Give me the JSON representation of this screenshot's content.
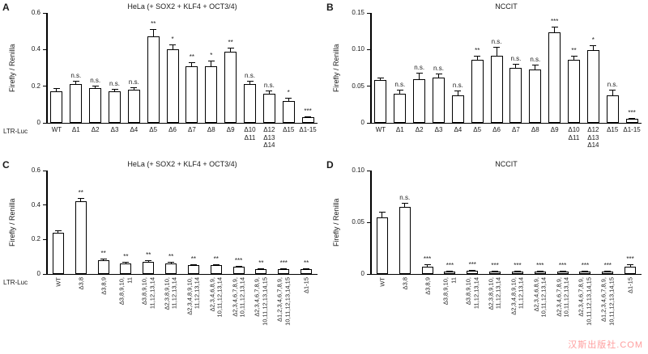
{
  "watermark": "汉斯出版社.COM",
  "chart_data": [
    {
      "panel": "A",
      "type": "bar",
      "title": "HeLa (+ SOX2 + KLF4 + OCT3/4)",
      "ylabel": "Firefly / Renilla",
      "xlabel": "LTR-Luc",
      "ylim": [
        0,
        0.6
      ],
      "yticks": [
        0,
        0.2,
        0.4,
        0.6
      ],
      "ytick_labels": [
        "0",
        "0.2",
        "0.4",
        "0.6"
      ],
      "rotated_labels": false,
      "categories": [
        [
          "WT"
        ],
        [
          "Δ1"
        ],
        [
          "Δ2"
        ],
        [
          "Δ3"
        ],
        [
          "Δ4"
        ],
        [
          "Δ5"
        ],
        [
          "Δ6"
        ],
        [
          "Δ7"
        ],
        [
          "Δ8"
        ],
        [
          "Δ9"
        ],
        [
          "Δ10",
          "Δ11"
        ],
        [
          "Δ12",
          "Δ13",
          "Δ14"
        ],
        [
          "Δ15"
        ],
        [
          "Δ1-15"
        ]
      ],
      "values": [
        0.17,
        0.21,
        0.19,
        0.17,
        0.18,
        0.47,
        0.4,
        0.31,
        0.31,
        0.39,
        0.21,
        0.16,
        0.12,
        0.03
      ],
      "errors": [
        0.02,
        0.02,
        0.015,
        0.015,
        0.015,
        0.04,
        0.03,
        0.02,
        0.03,
        0.02,
        0.02,
        0.015,
        0.015,
        0.005
      ],
      "significance": [
        "",
        "n.s.",
        "n.s.",
        "n.s.",
        "n.s.",
        "**",
        "*",
        "**",
        "*",
        "**",
        "n.s.",
        "n.s.",
        "*",
        "***"
      ]
    },
    {
      "panel": "B",
      "type": "bar",
      "title": "NCCIT",
      "ylabel": "Firefly / Renilla",
      "xlabel": "",
      "ylim": [
        0,
        0.15
      ],
      "yticks": [
        0,
        0.05,
        0.1,
        0.15
      ],
      "ytick_labels": [
        "0",
        "0.05",
        "0.10",
        "0.15"
      ],
      "rotated_labels": false,
      "categories": [
        [
          "WT"
        ],
        [
          "Δ1"
        ],
        [
          "Δ2"
        ],
        [
          "Δ3"
        ],
        [
          "Δ4"
        ],
        [
          "Δ5"
        ],
        [
          "Δ6"
        ],
        [
          "Δ7"
        ],
        [
          "Δ8"
        ],
        [
          "Δ9"
        ],
        [
          "Δ10",
          "Δ11"
        ],
        [
          "Δ12",
          "Δ13",
          "Δ14"
        ],
        [
          "Δ15"
        ],
        [
          "Δ1-15"
        ]
      ],
      "values": [
        0.058,
        0.04,
        0.06,
        0.062,
        0.038,
        0.086,
        0.092,
        0.075,
        0.073,
        0.123,
        0.086,
        0.099,
        0.037,
        0.005
      ],
      "errors": [
        0.004,
        0.005,
        0.008,
        0.005,
        0.006,
        0.006,
        0.012,
        0.006,
        0.006,
        0.008,
        0.005,
        0.007,
        0.008,
        0.002
      ],
      "significance": [
        "",
        "n.s.",
        "n.s.",
        "n.s.",
        "n.s.",
        "**",
        "n.s.",
        "n.s.",
        "n.s.",
        "***",
        "**",
        "*",
        "n.s.",
        "***"
      ]
    },
    {
      "panel": "C",
      "type": "bar",
      "title": "HeLa (+ SOX2 + KLF4 + OCT3/4)",
      "ylabel": "Firefly / Renilla",
      "xlabel": "LTR-Luc",
      "ylim": [
        0,
        0.6
      ],
      "yticks": [
        0,
        0.2,
        0.4,
        0.6
      ],
      "ytick_labels": [
        "0",
        "0.2",
        "0.4",
        "0.6"
      ],
      "rotated_labels": true,
      "categories": [
        [
          "WT"
        ],
        [
          "Δ3,8"
        ],
        [
          "Δ3,8,9"
        ],
        [
          "Δ3,8,9,10,",
          "11"
        ],
        [
          "Δ3,8,9,10,",
          "11,12,13,14"
        ],
        [
          "Δ2,3,8,9,10,",
          "11,12,13,14"
        ],
        [
          "Δ2,3,4,8,9,10,",
          "11,12,13,14"
        ],
        [
          "Δ2,3,4,6,8,9,",
          "10,11,12,13,14"
        ],
        [
          "Δ2,3,4,6,7,8,9,",
          "10,11,12,13,14"
        ],
        [
          "Δ2,3,4,6,7,8,9,",
          "10,11,12,13,14,15"
        ],
        [
          "Δ1,2,3,4,6,7,8,9,",
          "10,11,12,13,14,15"
        ],
        [
          "Δ1-15"
        ]
      ],
      "values": [
        0.24,
        0.42,
        0.08,
        0.06,
        0.07,
        0.06,
        0.05,
        0.05,
        0.04,
        0.03,
        0.03,
        0.03
      ],
      "errors": [
        0.015,
        0.02,
        0.01,
        0.008,
        0.01,
        0.008,
        0.008,
        0.008,
        0.006,
        0.005,
        0.005,
        0.005
      ],
      "significance": [
        "",
        "**",
        "**",
        "**",
        "**",
        "**",
        "**",
        "**",
        "***",
        "**",
        "***",
        "**"
      ]
    },
    {
      "panel": "D",
      "type": "bar",
      "title": "NCCIT",
      "ylabel": "Firefly / Renilla",
      "xlabel": "",
      "ylim": [
        0,
        0.1
      ],
      "yticks": [
        0,
        0.05,
        0.1
      ],
      "ytick_labels": [
        "0",
        "0.05",
        "0.10"
      ],
      "rotated_labels": true,
      "categories": [
        [
          "WT"
        ],
        [
          "Δ3,8"
        ],
        [
          "Δ3,8,9"
        ],
        [
          "Δ3,8,9,10,",
          "11"
        ],
        [
          "Δ3,8,9,10,",
          "11,12,13,14"
        ],
        [
          "Δ2,3,8,9,10,",
          "11,12,13,14"
        ],
        [
          "Δ2,3,4,8,9,10,",
          "11,12,13,14"
        ],
        [
          "Δ2,3,4,6,8,9,",
          "10,11,12,13,14"
        ],
        [
          "Δ2,3,4,6,7,8,9,",
          "10,11,12,13,14"
        ],
        [
          "Δ2,3,4,6,7,8,9,",
          "10,11,12,13,14,15"
        ],
        [
          "Δ1,2,3,4,6,7,8,9,",
          "10,11,12,13,14,15"
        ],
        [
          "Δ1-15"
        ]
      ],
      "values": [
        0.055,
        0.065,
        0.007,
        0.002,
        0.003,
        0.002,
        0.002,
        0.002,
        0.002,
        0.002,
        0.002,
        0.007
      ],
      "errors": [
        0.005,
        0.004,
        0.002,
        0.001,
        0.001,
        0.001,
        0.001,
        0.001,
        0.001,
        0.001,
        0.001,
        0.002
      ],
      "significance": [
        "",
        "n.s.",
        "***",
        "***",
        "***",
        "***",
        "***",
        "***",
        "***",
        "***",
        "***",
        "***"
      ]
    }
  ]
}
